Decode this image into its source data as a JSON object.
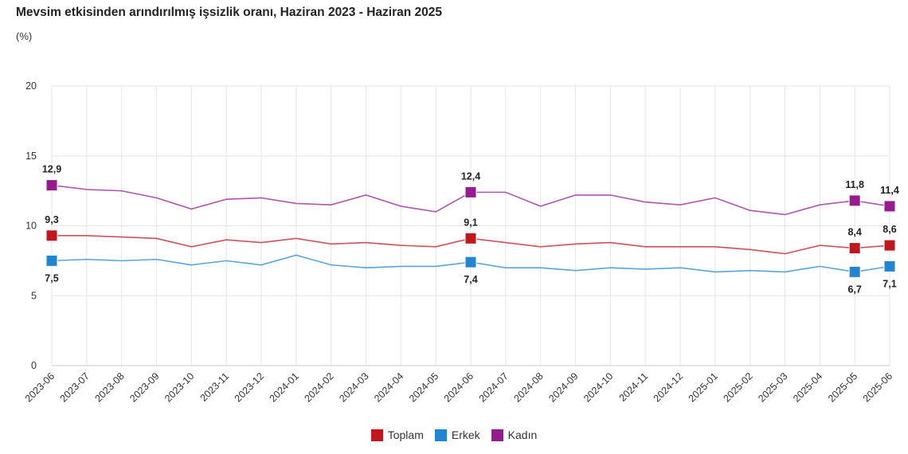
{
  "chart_data": {
    "type": "line",
    "title": "Mevsim etkisinden arındırılmış işsizlik oranı, Haziran 2023 - Haziran 2025",
    "ylabel": "(%)",
    "xlabel": "",
    "ylim": [
      0,
      20
    ],
    "yticks": [
      0,
      5,
      10,
      15,
      20
    ],
    "grid": true,
    "legend": "bottom",
    "x": [
      "2023-06",
      "2023-07",
      "2023-08",
      "2023-09",
      "2023-10",
      "2023-11",
      "2023-12",
      "2024-01",
      "2024-02",
      "2024-03",
      "2024-04",
      "2024-05",
      "2024-06",
      "2024-07",
      "2024-08",
      "2024-09",
      "2024-10",
      "2024-11",
      "2024-12",
      "2025-01",
      "2025-02",
      "2025-03",
      "2025-04",
      "2025-05",
      "2025-06"
    ],
    "labeled_points": [
      "2023-06",
      "2024-06",
      "2025-05",
      "2025-06"
    ],
    "series": [
      {
        "name": "Toplam",
        "color": "#c0171f",
        "label_pos": "above",
        "values": [
          9.3,
          9.3,
          9.2,
          9.1,
          8.5,
          9.0,
          8.8,
          9.1,
          8.7,
          8.8,
          8.6,
          8.5,
          9.1,
          8.8,
          8.5,
          8.7,
          8.8,
          8.5,
          8.5,
          8.5,
          8.3,
          8.0,
          8.6,
          8.4,
          8.6
        ]
      },
      {
        "name": "Erkek",
        "color": "#2384d1",
        "label_pos": "below",
        "values": [
          7.5,
          7.6,
          7.5,
          7.6,
          7.2,
          7.5,
          7.2,
          7.9,
          7.2,
          7.0,
          7.1,
          7.1,
          7.4,
          7.0,
          7.0,
          6.8,
          7.0,
          6.9,
          7.0,
          6.7,
          6.8,
          6.7,
          7.1,
          6.7,
          7.1
        ]
      },
      {
        "name": "Kadın",
        "color": "#951c8e",
        "label_pos": "above",
        "values": [
          12.9,
          12.6,
          12.5,
          12.0,
          11.2,
          11.9,
          12.0,
          11.6,
          11.5,
          12.2,
          11.4,
          11.0,
          12.4,
          12.4,
          11.4,
          12.2,
          12.2,
          11.7,
          11.5,
          12.0,
          11.1,
          10.8,
          11.5,
          11.8,
          11.4
        ]
      }
    ]
  }
}
